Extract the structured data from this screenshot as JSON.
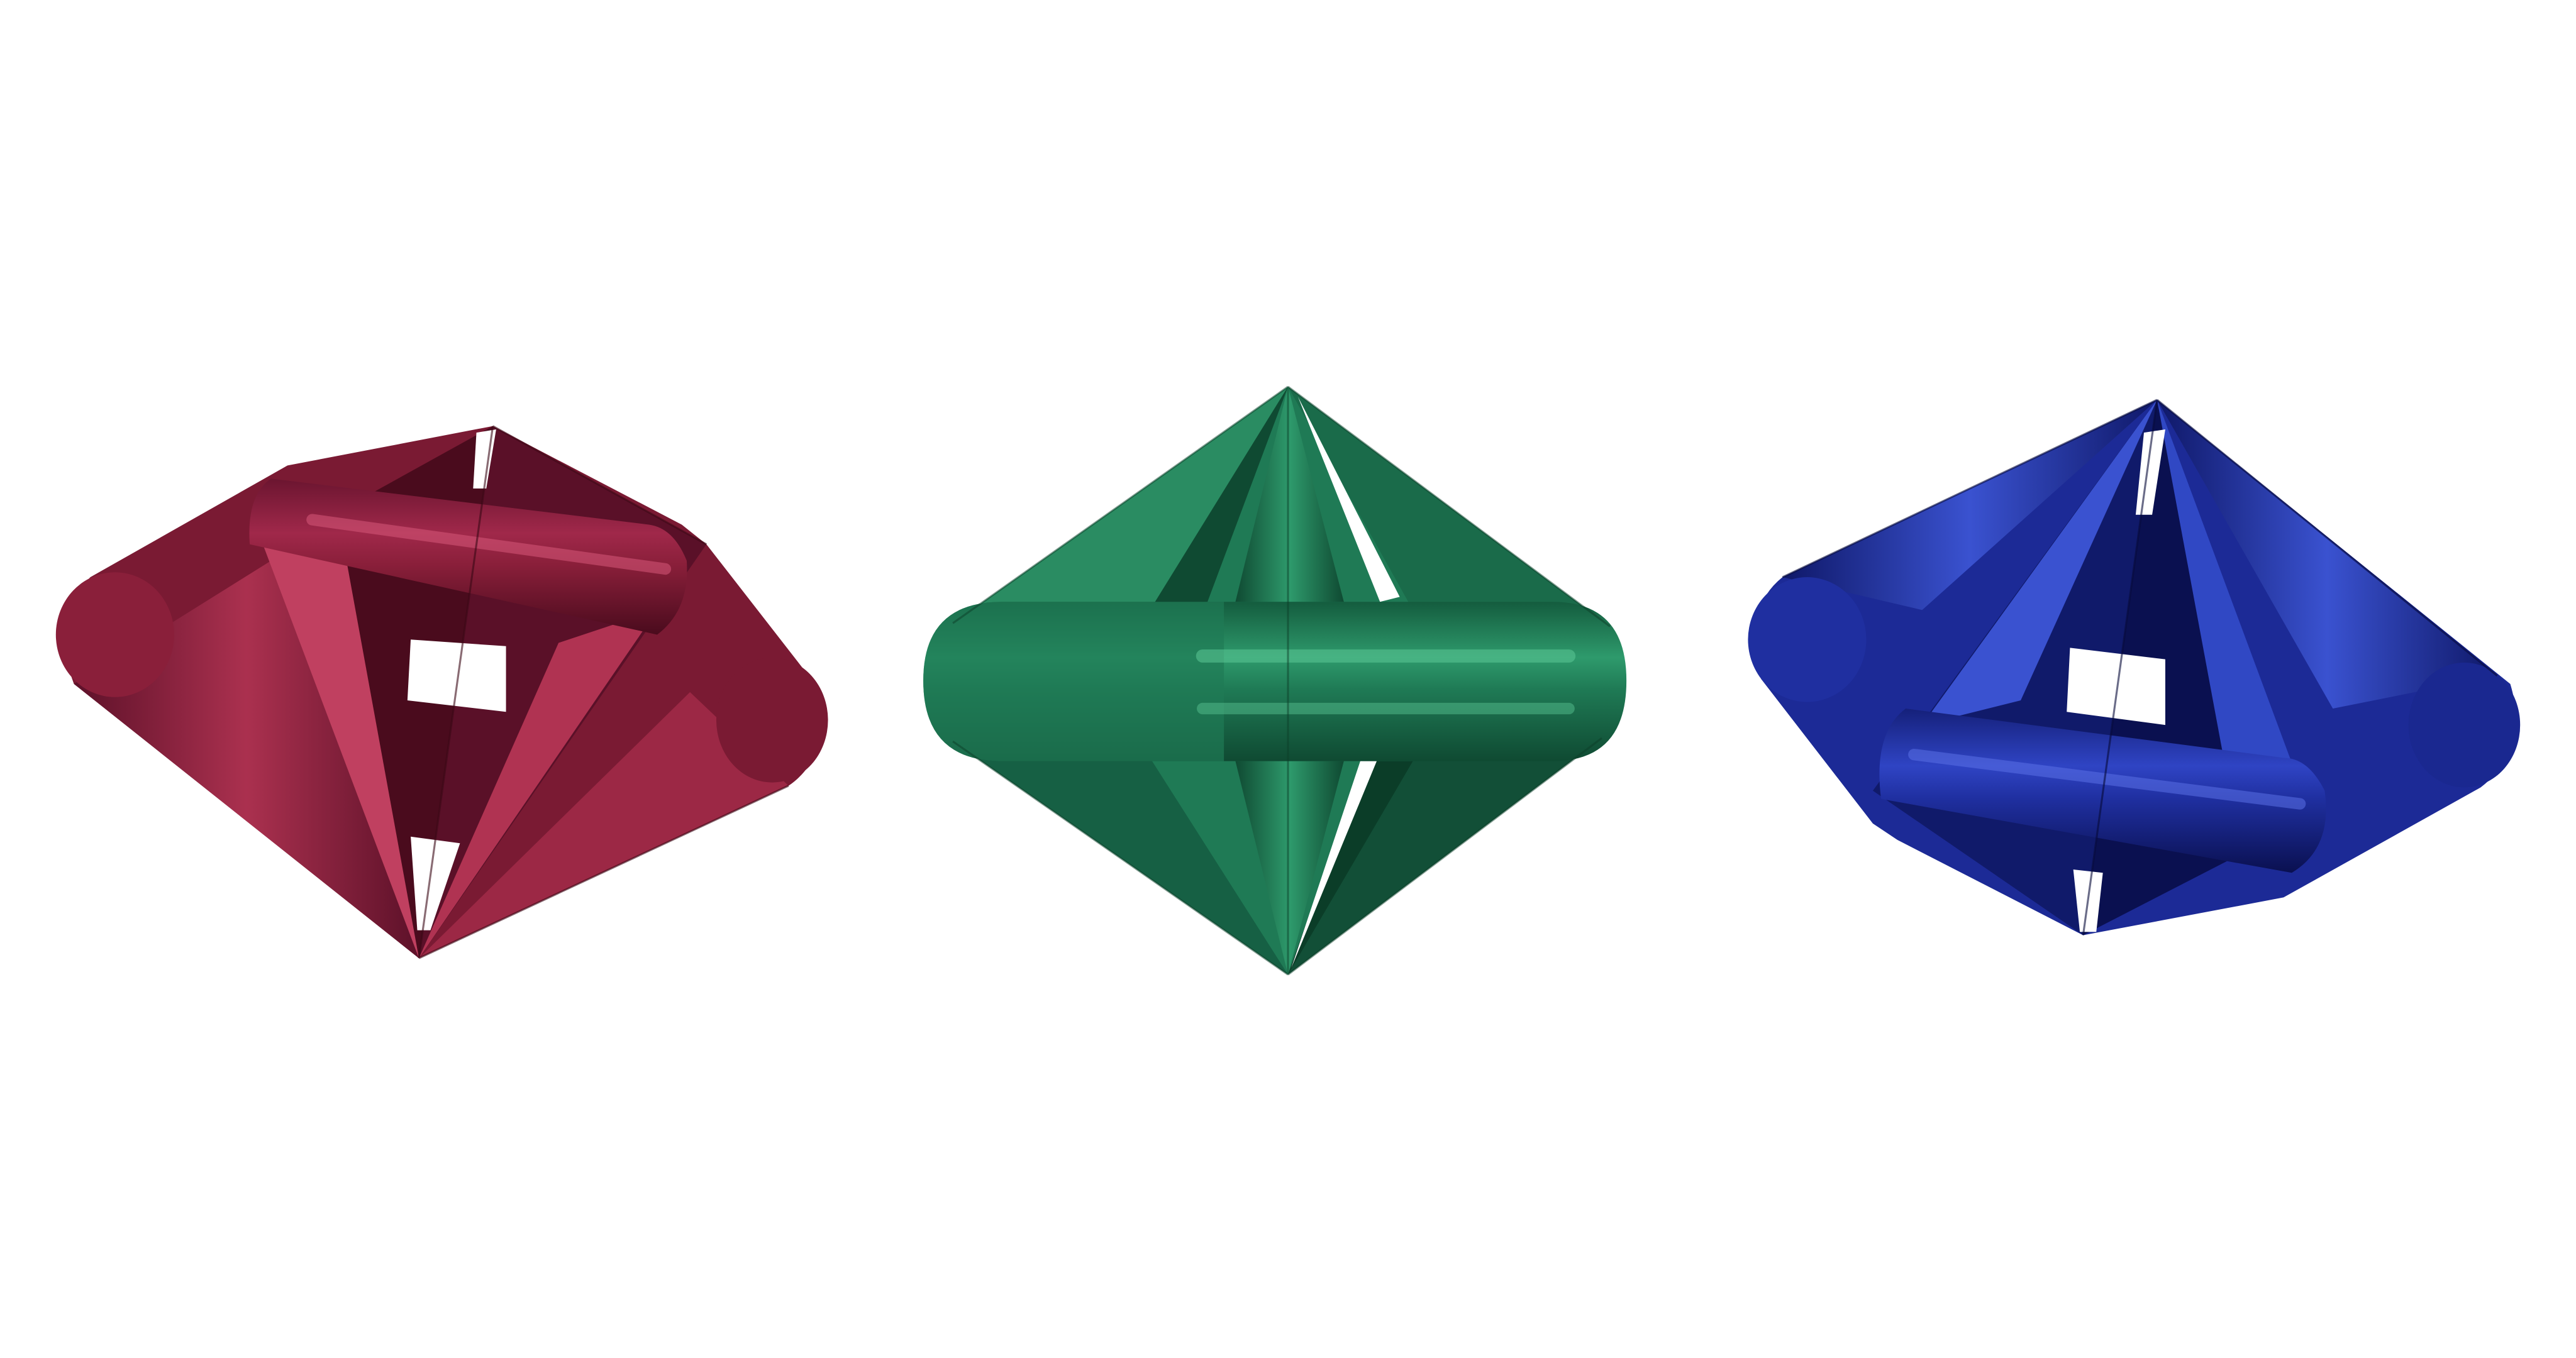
{
  "scene": {
    "background": "#ffffff",
    "objects": [
      {
        "name": "red-object",
        "shape": "twisted-bicone-frame",
        "palette": {
          "base": "#8a1f3a",
          "dark": "#4a0b1d",
          "mid": "#6b1530",
          "light": "#b03352",
          "highlight": "#d7587a"
        }
      },
      {
        "name": "green-object",
        "shape": "bicone-frame-front-view",
        "palette": {
          "base": "#1f7a55",
          "dark": "#0b3d28",
          "mid": "#145c3e",
          "light": "#2e9a6c",
          "highlight": "#5cc896"
        }
      },
      {
        "name": "blue-object",
        "shape": "twisted-bicone-frame",
        "palette": {
          "base": "#1f2fa0",
          "dark": "#0a1050",
          "mid": "#15207a",
          "light": "#2f44c4",
          "highlight": "#5a70e6"
        }
      }
    ]
  }
}
